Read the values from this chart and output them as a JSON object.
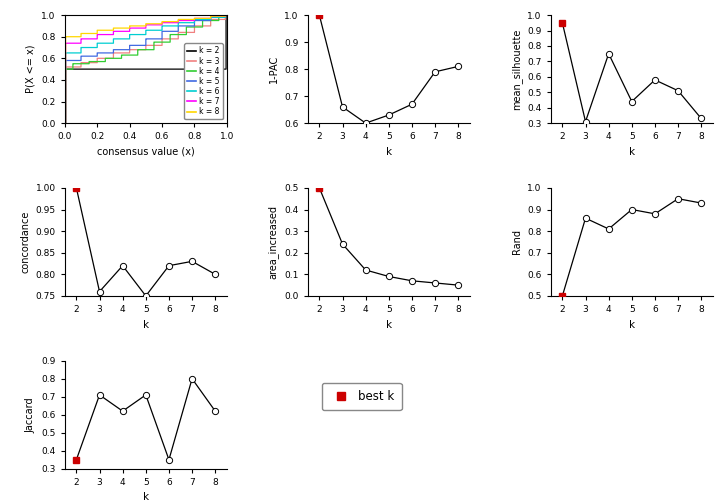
{
  "k_values": [
    2,
    3,
    4,
    5,
    6,
    7,
    8
  ],
  "one_minus_pac": [
    1.0,
    0.66,
    0.6,
    0.63,
    0.67,
    0.79,
    0.81
  ],
  "mean_silhouette": [
    0.95,
    0.31,
    0.75,
    0.44,
    0.58,
    0.51,
    0.33
  ],
  "concordance": [
    1.0,
    0.76,
    0.82,
    0.75,
    0.82,
    0.83,
    0.8
  ],
  "area_increased": [
    0.5,
    0.24,
    0.12,
    0.09,
    0.07,
    0.06,
    0.05
  ],
  "rand": [
    0.5,
    0.86,
    0.81,
    0.9,
    0.88,
    0.95,
    0.93
  ],
  "jaccard": [
    0.35,
    0.71,
    0.62,
    0.71,
    0.35,
    0.8,
    0.62
  ],
  "best_k": 2,
  "ecdf_colors": [
    "#000000",
    "#f08080",
    "#32cd32",
    "#4169e1",
    "#00ced1",
    "#ff00ff",
    "#ffd700"
  ],
  "ecdf_labels": [
    "k = 2",
    "k = 3",
    "k = 4",
    "k = 5",
    "k = 6",
    "k = 7",
    "k = 8"
  ],
  "background_color": "#ffffff",
  "open_circle_color": "#ffffff",
  "line_color": "#000000",
  "red_dot_color": "#cc0000"
}
